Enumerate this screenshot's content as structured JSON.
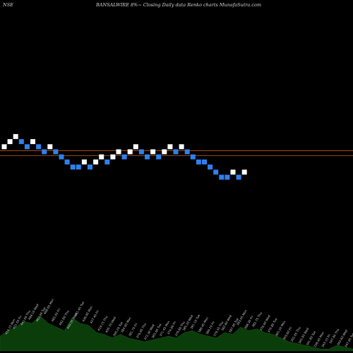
{
  "header": {
    "exchange": "NSE",
    "title": "BANSALWIRE 8%~   Closing Daily data  Renko  charts MunafaSutra.com"
  },
  "colors": {
    "background": "#000000",
    "up_brick": "#ffffff",
    "down_brick": "#2f80ed",
    "reference_line": "#c05a1e",
    "volume_fill": "#0b3d0b"
  },
  "chart_data": {
    "type": "renko",
    "brick_size_label": "8%",
    "reference_lines": [
      1.0,
      0.0
    ],
    "bricks": [
      {
        "d": "up",
        "level": 1
      },
      {
        "d": "up",
        "level": 2
      },
      {
        "d": "up",
        "level": 3
      },
      {
        "d": "down",
        "level": 2
      },
      {
        "d": "down",
        "level": 1
      },
      {
        "d": "up",
        "level": 2
      },
      {
        "d": "down",
        "level": 1
      },
      {
        "d": "down",
        "level": 0
      },
      {
        "d": "up",
        "level": 1
      },
      {
        "d": "down",
        "level": 0
      },
      {
        "d": "down",
        "level": -1
      },
      {
        "d": "down",
        "level": -2
      },
      {
        "d": "down",
        "level": -3
      },
      {
        "d": "down",
        "level": -3
      },
      {
        "d": "up",
        "level": -2
      },
      {
        "d": "down",
        "level": -3
      },
      {
        "d": "up",
        "level": -2
      },
      {
        "d": "up",
        "level": -1
      },
      {
        "d": "down",
        "level": -2
      },
      {
        "d": "up",
        "level": -1
      },
      {
        "d": "up",
        "level": 0
      },
      {
        "d": "down",
        "level": -1
      },
      {
        "d": "up",
        "level": 0
      },
      {
        "d": "up",
        "level": 1
      },
      {
        "d": "down",
        "level": 0
      },
      {
        "d": "down",
        "level": -1
      },
      {
        "d": "up",
        "level": 0
      },
      {
        "d": "down",
        "level": -1
      },
      {
        "d": "up",
        "level": 0
      },
      {
        "d": "up",
        "level": 1
      },
      {
        "d": "down",
        "level": 0
      },
      {
        "d": "up",
        "level": 1
      },
      {
        "d": "down",
        "level": 0
      },
      {
        "d": "down",
        "level": -1
      },
      {
        "d": "down",
        "level": -2
      },
      {
        "d": "down",
        "level": -2
      },
      {
        "d": "down",
        "level": -3
      },
      {
        "d": "down",
        "level": -4
      },
      {
        "d": "down",
        "level": -5
      },
      {
        "d": "down",
        "level": -5
      },
      {
        "d": "up",
        "level": -4
      },
      {
        "d": "down",
        "level": -5
      },
      {
        "d": "up",
        "level": -4
      }
    ],
    "volume": [
      16,
      22,
      26,
      32,
      30,
      38,
      30,
      26,
      22,
      36,
      30,
      28,
      20,
      18,
      14,
      18,
      14,
      12,
      10,
      12,
      14,
      16,
      14,
      20,
      22,
      18,
      16,
      14,
      20,
      18,
      26,
      22,
      24,
      20,
      18,
      14,
      10,
      8,
      6,
      4,
      2,
      2,
      6,
      4,
      2
    ],
    "volume_labels": [
      "414.15 Mon",
      "431.50 Fri",
      "441.00 Thu",
      "448.10 Wed",
      "463.90 Tue",
      "468.65 Mon",
      "465.05 Fri",
      "462.80 Thu",
      "449.05 Wed",
      "441.45 Tue",
      "436.95 Mon",
      "427.40 Fri",
      "419.15 Thu",
      "405.70 Wed",
      "395.20 Tue",
      "384.90 Mon",
      "381.75 Fri",
      "376.65 Thu",
      "372.30 Wed",
      "365.60 Tue",
      "371.45 Mon",
      "374.60 Fri",
      "379.80 Thu",
      "385.20 Wed",
      "391.10 Tue",
      "388.45 Mon",
      "384.20 Fri",
      "379.55 Thu",
      "382.60 Wed",
      "387.95 Tue",
      "393.05 Mon",
      "388.30 Fri",
      "382.75 Thu",
      "376.40 Wed",
      "370.85 Tue",
      "365.20 Mon",
      "359.60 Fri",
      "352.05 Thu",
      "345.95 Wed",
      "341.80 Tue",
      "338.40 Mon",
      "343.15 Fri",
      "347.90 Thu",
      "343.60 Wed",
      "347.65 Tue"
    ]
  }
}
